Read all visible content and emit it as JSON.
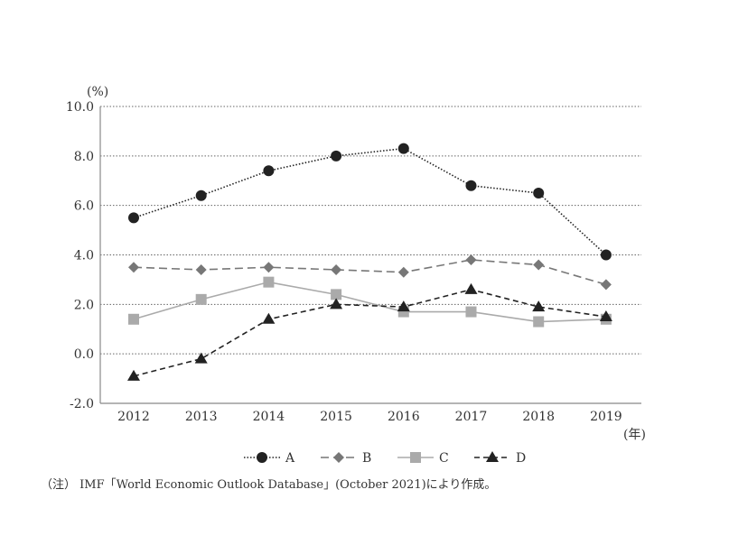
{
  "chart_data": {
    "type": "line",
    "title": "",
    "ylabel": "(%)",
    "xlabel": "(年)",
    "ylim": [
      -2,
      10
    ],
    "yticks": [
      "10.0",
      "8.0",
      "6.0",
      "4.0",
      "2.0",
      "0.0",
      "-2.0"
    ],
    "ytick_values": [
      10,
      8,
      6,
      4,
      2,
      0,
      -2
    ],
    "categories": [
      "2012",
      "2013",
      "2014",
      "2015",
      "2016",
      "2017",
      "2018",
      "2019"
    ],
    "grid": true,
    "legend_position": "bottom",
    "series": [
      {
        "name": "A",
        "marker": "circle",
        "line": "dotted",
        "color": "#222222",
        "values": [
          5.5,
          6.4,
          7.4,
          8.0,
          8.3,
          6.8,
          6.5,
          4.0
        ]
      },
      {
        "name": "B",
        "marker": "diamond",
        "line": "long-dash",
        "color": "#777777",
        "values": [
          3.5,
          3.4,
          3.5,
          3.4,
          3.3,
          3.8,
          3.6,
          2.8
        ]
      },
      {
        "name": "C",
        "marker": "square",
        "line": "solid",
        "color": "#aaaaaa",
        "values": [
          1.4,
          2.2,
          2.9,
          2.4,
          1.7,
          1.7,
          1.3,
          1.4
        ]
      },
      {
        "name": "D",
        "marker": "triangle",
        "line": "dash",
        "color": "#222222",
        "values": [
          -0.9,
          -0.2,
          1.4,
          2.0,
          1.9,
          2.6,
          1.9,
          1.5
        ]
      }
    ],
    "note": "（注） IMF「World Economic Outlook Database」(October 2021)により作成。"
  }
}
